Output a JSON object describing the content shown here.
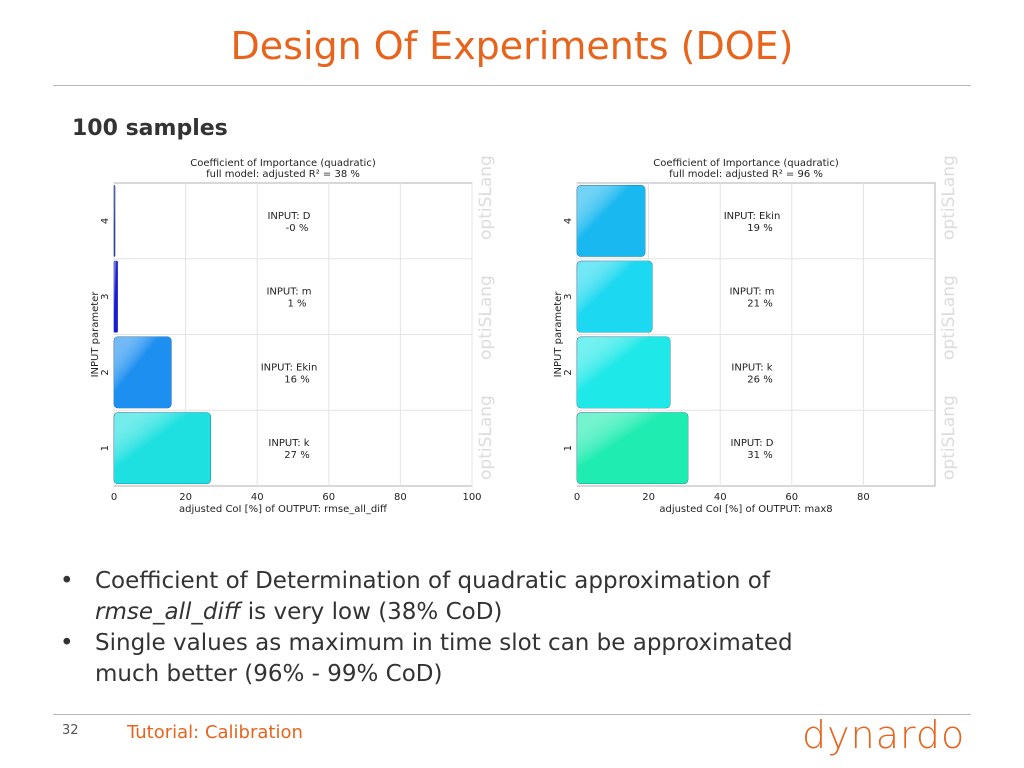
{
  "slide": {
    "title": "Design Of Experiments (DOE)",
    "subtitle": "100 samples",
    "bullets": [
      {
        "italic": "",
        "text": "Coefficient of Determination of quadratic approximation of",
        "cont_italic": "rmse_all_diff",
        "cont_text": " is very low (38% CoD)"
      },
      {
        "text": "Single values as maximum in time slot can be approximated",
        "cont_text": "much better (96% - 99% CoD)"
      }
    ],
    "bullet_symbol": "•",
    "page_number": "32",
    "footer": "Tutorial: Calibration",
    "logo_text": "dynardo",
    "brand_color": "#e8641c"
  },
  "chart_data": [
    {
      "type": "bar",
      "orientation": "horizontal",
      "title": "Coefficient of Importance (quadratic)",
      "subtitle": "full model: adjusted R² =    38 %",
      "xlabel": "adjusted CoI [%] of OUTPUT: rmse_all_diff",
      "ylabel": "INPUT parameter",
      "xlim": [
        0,
        100
      ],
      "xticks": [
        "0",
        "20",
        "40",
        "60",
        "80",
        "100"
      ],
      "categories": [
        "1",
        "2",
        "3",
        "4"
      ],
      "bar_labels": [
        "INPUT: k",
        "INPUT: Ekin",
        "INPUT: m",
        "INPUT: D"
      ],
      "value_labels": [
        "27 %",
        "16 %",
        "1 %",
        "-0 %"
      ],
      "values": [
        27,
        16,
        1,
        0
      ],
      "bar_colors": [
        "#1ee0e0",
        "#1c8ff0",
        "#1a1ad8",
        "#3a3a9a"
      ],
      "watermark": "optiSLang",
      "grid": true
    },
    {
      "type": "bar",
      "orientation": "horizontal",
      "title": "Coefficient of Importance (quadratic)",
      "subtitle": "full model: adjusted R² =    96 %",
      "xlabel": "adjusted CoI [%] of OUTPUT: max8",
      "ylabel": "INPUT parameter",
      "xlim": [
        0,
        100
      ],
      "xticks": [
        "0",
        "20",
        "40",
        "60",
        "80"
      ],
      "categories": [
        "1",
        "2",
        "3",
        "4"
      ],
      "bar_labels": [
        "INPUT: D",
        "INPUT: k",
        "INPUT: m",
        "INPUT: Ekin"
      ],
      "value_labels": [
        "31 %",
        "26 %",
        "21 %",
        "19 %"
      ],
      "values": [
        31,
        26,
        21,
        19
      ],
      "bar_colors": [
        "#1eecb0",
        "#1ee8e8",
        "#1cd8f0",
        "#1ab8f0"
      ],
      "watermark": "optiSLang",
      "grid": true
    }
  ]
}
